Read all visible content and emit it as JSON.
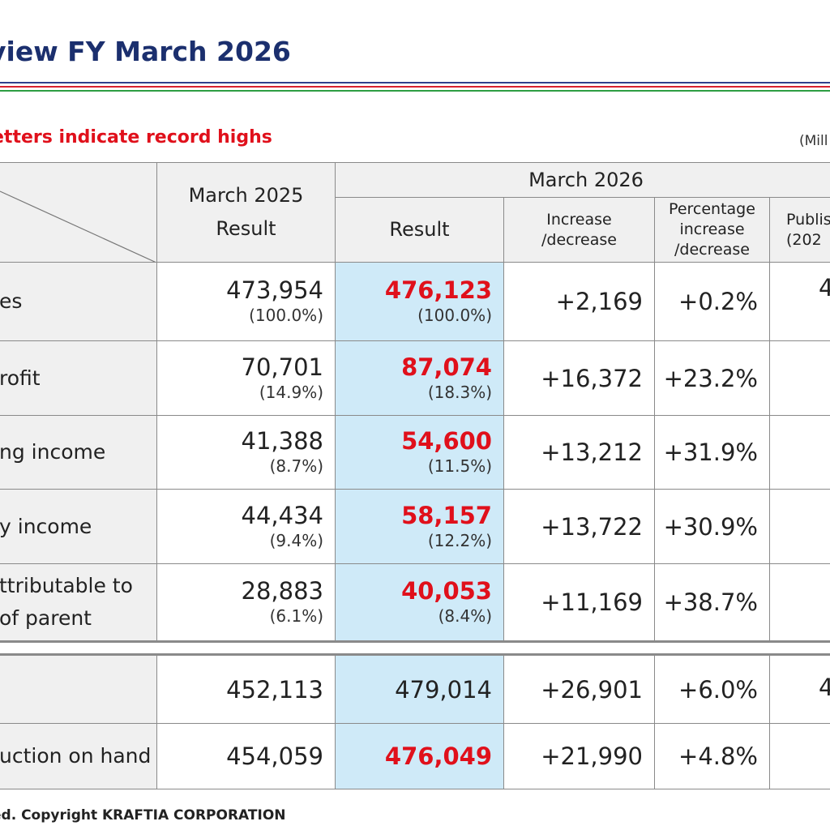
{
  "title": "view FY March 2026",
  "note": "etters indicate record highs",
  "unit": "(Mill",
  "header": {
    "col_2025": [
      "March 2025",
      "Result"
    ],
    "group_2026": "March 2026",
    "result": "Result",
    "increase": [
      "Increase",
      "/decrease"
    ],
    "percentage": [
      "Percentage",
      "increase",
      "/decrease"
    ],
    "published": [
      "Publis",
      "(202"
    ]
  },
  "rows": [
    {
      "label": [
        "es"
      ],
      "r2025": "473,954",
      "p2025": "(100.0%)",
      "r2026": "476,123",
      "p2026": "(100.0%)",
      "inc": "+2,169",
      "pct": "+0.2%",
      "pub": "4"
    },
    {
      "label": [
        "rofit"
      ],
      "r2025": "70,701",
      "p2025": "(14.9%)",
      "r2026": "87,074",
      "p2026": "(18.3%)",
      "inc": "+16,372",
      "pct": "+23.2%",
      "pub": ""
    },
    {
      "label": [
        "ng income"
      ],
      "r2025": "41,388",
      "p2025": "(8.7%)",
      "r2026": "54,600",
      "p2026": "(11.5%)",
      "inc": "+13,212",
      "pct": "+31.9%",
      "pub": ""
    },
    {
      "label": [
        "y income"
      ],
      "r2025": "44,434",
      "p2025": "(9.4%)",
      "r2026": "58,157",
      "p2026": "(12.2%)",
      "inc": "+13,722",
      "pct": "+30.9%",
      "pub": ""
    },
    {
      "label": [
        "ttributable to",
        " of parent"
      ],
      "r2025": "28,883",
      "p2025": "(6.1%)",
      "r2026": "40,053",
      "p2026": "(8.4%)",
      "inc": "+11,169",
      "pct": "+38.7%",
      "pub": ""
    },
    {
      "label": [
        ""
      ],
      "r2025": "452,113",
      "r2026": "479,014",
      "inc": "+26,901",
      "pct": "+6.0%",
      "pub": "4"
    },
    {
      "label": [
        "uction on hand"
      ],
      "r2025": "454,059",
      "r2026": "476,049",
      "inc": "+21,990",
      "pct": "+4.8%",
      "pub": ""
    }
  ],
  "footer": "ed. Copyright KRAFTIA CORPORATION",
  "colors": {
    "title": "#1b2f6e",
    "record": "#e0101b",
    "highlight": "#cfeaf8",
    "label_bg": "#f0f0f0"
  }
}
